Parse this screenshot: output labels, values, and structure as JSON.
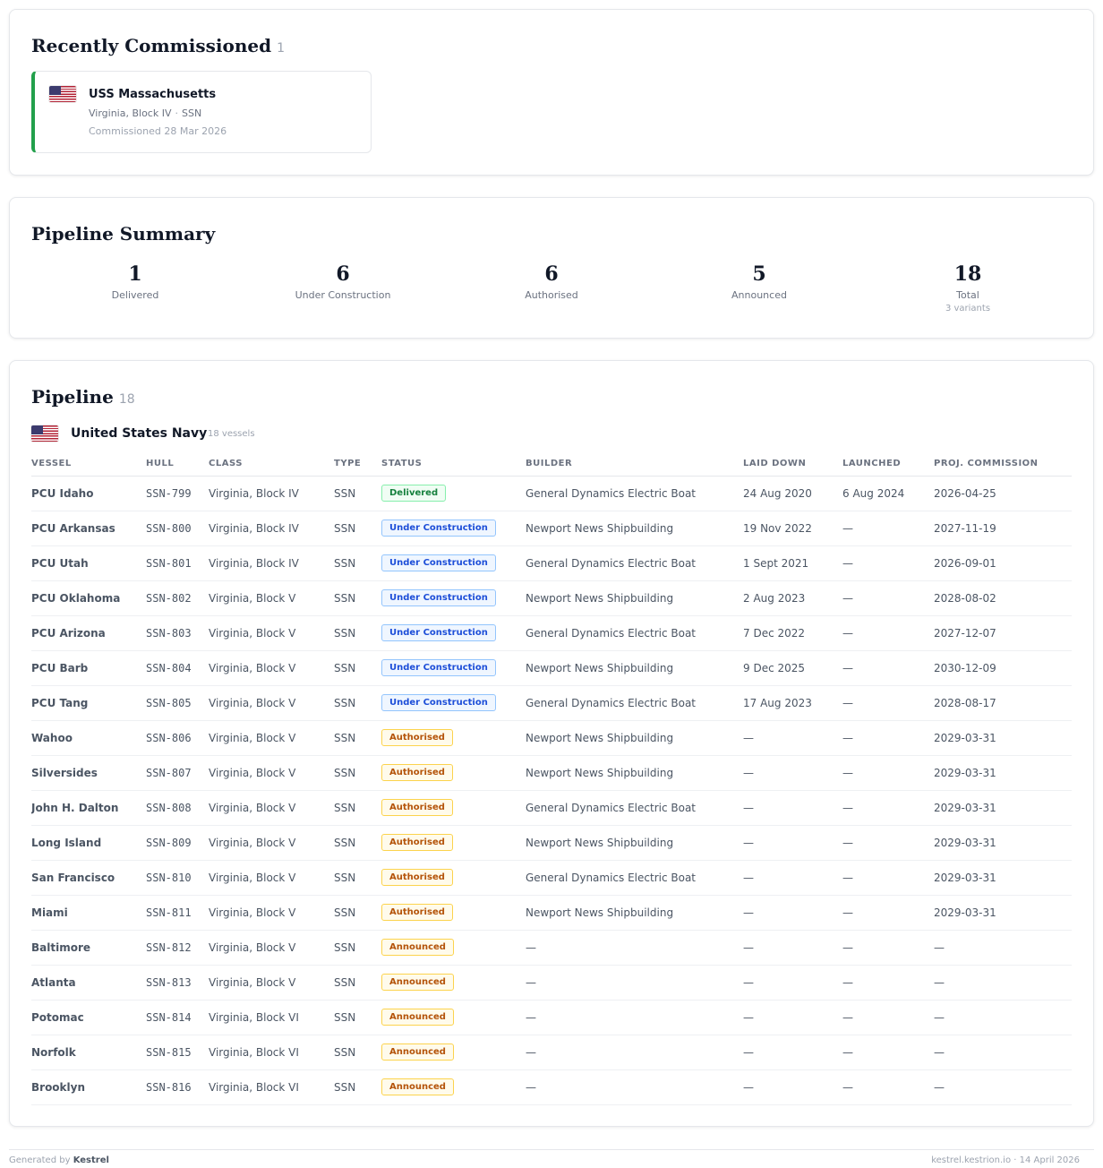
{
  "recent": {
    "title": "Recently Commissioned",
    "count": "1",
    "item": {
      "name": "USS Massachusetts",
      "class": "Virginia, Block IV",
      "type": "SSN",
      "date": "Commissioned 28 Mar 2026",
      "flag": "us-flag-icon"
    }
  },
  "summary": {
    "title": "Pipeline Summary",
    "stats": [
      {
        "value": "1",
        "label": "Delivered"
      },
      {
        "value": "6",
        "label": "Under Construction"
      },
      {
        "value": "6",
        "label": "Authorised"
      },
      {
        "value": "5",
        "label": "Announced"
      },
      {
        "value": "18",
        "label": "Total",
        "sub": "3 variants"
      }
    ]
  },
  "pipeline": {
    "title": "Pipeline",
    "count": "18",
    "navy": {
      "name": "United States Navy",
      "count": "18 vessels",
      "flag": "us-flag-icon"
    },
    "headers": [
      "VESSEL",
      "HULL",
      "CLASS",
      "TYPE",
      "STATUS",
      "BUILDER",
      "LAID DOWN",
      "LAUNCHED",
      "PROJ. COMMISSION"
    ],
    "rows": [
      {
        "vessel": "PCU Idaho",
        "hull": "SSN-799",
        "class": "Virginia, Block IV",
        "type": "SSN",
        "status": "Delivered",
        "status_kind": "delivered",
        "builder": "General Dynamics Electric Boat",
        "laid": "24 Aug 2020",
        "launched": "6 Aug 2024",
        "commission": "2026-04-25"
      },
      {
        "vessel": "PCU Arkansas",
        "hull": "SSN-800",
        "class": "Virginia, Block IV",
        "type": "SSN",
        "status": "Under Construction",
        "status_kind": "construction",
        "builder": "Newport News Shipbuilding",
        "laid": "19 Nov 2022",
        "launched": "—",
        "commission": "2027-11-19"
      },
      {
        "vessel": "PCU Utah",
        "hull": "SSN-801",
        "class": "Virginia, Block IV",
        "type": "SSN",
        "status": "Under Construction",
        "status_kind": "construction",
        "builder": "General Dynamics Electric Boat",
        "laid": "1 Sept 2021",
        "launched": "—",
        "commission": "2026-09-01"
      },
      {
        "vessel": "PCU Oklahoma",
        "hull": "SSN-802",
        "class": "Virginia, Block V",
        "type": "SSN",
        "status": "Under Construction",
        "status_kind": "construction",
        "builder": "Newport News Shipbuilding",
        "laid": "2 Aug 2023",
        "launched": "—",
        "commission": "2028-08-02"
      },
      {
        "vessel": "PCU Arizona",
        "hull": "SSN-803",
        "class": "Virginia, Block V",
        "type": "SSN",
        "status": "Under Construction",
        "status_kind": "construction",
        "builder": "General Dynamics Electric Boat",
        "laid": "7 Dec 2022",
        "launched": "—",
        "commission": "2027-12-07"
      },
      {
        "vessel": "PCU Barb",
        "hull": "SSN-804",
        "class": "Virginia, Block V",
        "type": "SSN",
        "status": "Under Construction",
        "status_kind": "construction",
        "builder": "Newport News Shipbuilding",
        "laid": "9 Dec 2025",
        "launched": "—",
        "commission": "2030-12-09"
      },
      {
        "vessel": "PCU Tang",
        "hull": "SSN-805",
        "class": "Virginia, Block V",
        "type": "SSN",
        "status": "Under Construction",
        "status_kind": "construction",
        "builder": "General Dynamics Electric Boat",
        "laid": "17 Aug 2023",
        "launched": "—",
        "commission": "2028-08-17"
      },
      {
        "vessel": "Wahoo",
        "hull": "SSN-806",
        "class": "Virginia, Block V",
        "type": "SSN",
        "status": "Authorised",
        "status_kind": "authorised",
        "builder": "Newport News Shipbuilding",
        "laid": "—",
        "launched": "—",
        "commission": "2029-03-31"
      },
      {
        "vessel": "Silversides",
        "hull": "SSN-807",
        "class": "Virginia, Block V",
        "type": "SSN",
        "status": "Authorised",
        "status_kind": "authorised",
        "builder": "Newport News Shipbuilding",
        "laid": "—",
        "launched": "—",
        "commission": "2029-03-31"
      },
      {
        "vessel": "John H. Dalton",
        "hull": "SSN-808",
        "class": "Virginia, Block V",
        "type": "SSN",
        "status": "Authorised",
        "status_kind": "authorised",
        "builder": "General Dynamics Electric Boat",
        "laid": "—",
        "launched": "—",
        "commission": "2029-03-31"
      },
      {
        "vessel": "Long Island",
        "hull": "SSN-809",
        "class": "Virginia, Block V",
        "type": "SSN",
        "status": "Authorised",
        "status_kind": "authorised",
        "builder": "Newport News Shipbuilding",
        "laid": "—",
        "launched": "—",
        "commission": "2029-03-31"
      },
      {
        "vessel": "San Francisco",
        "hull": "SSN-810",
        "class": "Virginia, Block V",
        "type": "SSN",
        "status": "Authorised",
        "status_kind": "authorised",
        "builder": "General Dynamics Electric Boat",
        "laid": "—",
        "launched": "—",
        "commission": "2029-03-31"
      },
      {
        "vessel": "Miami",
        "hull": "SSN-811",
        "class": "Virginia, Block V",
        "type": "SSN",
        "status": "Authorised",
        "status_kind": "authorised",
        "builder": "Newport News Shipbuilding",
        "laid": "—",
        "launched": "—",
        "commission": "2029-03-31"
      },
      {
        "vessel": "Baltimore",
        "hull": "SSN-812",
        "class": "Virginia, Block V",
        "type": "SSN",
        "status": "Announced",
        "status_kind": "announced",
        "builder": "—",
        "laid": "—",
        "launched": "—",
        "commission": "—"
      },
      {
        "vessel": "Atlanta",
        "hull": "SSN-813",
        "class": "Virginia, Block V",
        "type": "SSN",
        "status": "Announced",
        "status_kind": "announced",
        "builder": "—",
        "laid": "—",
        "launched": "—",
        "commission": "—"
      },
      {
        "vessel": "Potomac",
        "hull": "SSN-814",
        "class": "Virginia, Block VI",
        "type": "SSN",
        "status": "Announced",
        "status_kind": "announced",
        "builder": "—",
        "laid": "—",
        "launched": "—",
        "commission": "—"
      },
      {
        "vessel": "Norfolk",
        "hull": "SSN-815",
        "class": "Virginia, Block VI",
        "type": "SSN",
        "status": "Announced",
        "status_kind": "announced",
        "builder": "—",
        "laid": "—",
        "launched": "—",
        "commission": "—"
      },
      {
        "vessel": "Brooklyn",
        "hull": "SSN-816",
        "class": "Virginia, Block VI",
        "type": "SSN",
        "status": "Announced",
        "status_kind": "announced",
        "builder": "—",
        "laid": "—",
        "launched": "—",
        "commission": "—"
      }
    ]
  },
  "footer": {
    "generated_prefix": "Generated by",
    "generator": "Kestrel",
    "right": "kestrel.kestrion.io · 14 April 2026"
  },
  "colors": {
    "delivered": "#15803d",
    "under_construction": "#1d4ed8",
    "authorised": "#b45309",
    "announced": "#b45309",
    "recent_accent": "#22a04b"
  }
}
